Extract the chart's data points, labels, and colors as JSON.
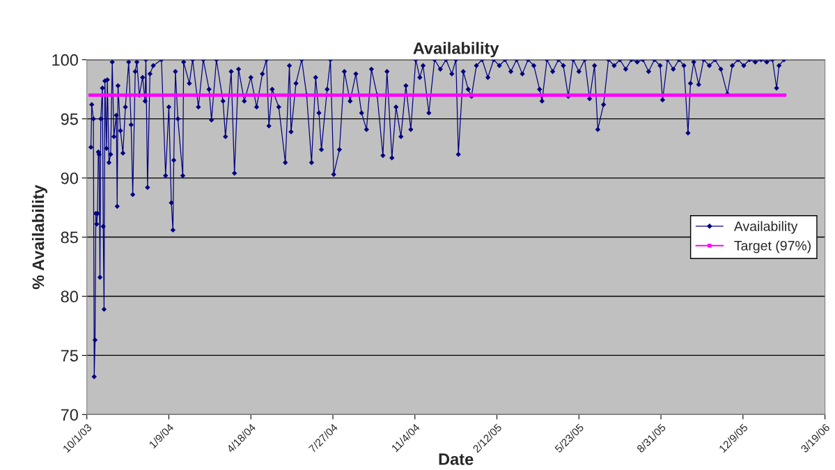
{
  "chart_data": {
    "type": "line",
    "title": "Availability",
    "xlabel": "Date",
    "ylabel": "% Availability",
    "xlim": [
      "2003-10-01",
      "2006-03-19"
    ],
    "xticks": [
      {
        "value": "2003-10-01",
        "label": "10/1/03"
      },
      {
        "value": "2004-01-09",
        "label": "1/9/04"
      },
      {
        "value": "2004-04-18",
        "label": "4/18/04"
      },
      {
        "value": "2004-07-27",
        "label": "7/27/04"
      },
      {
        "value": "2004-11-04",
        "label": "11/4/04"
      },
      {
        "value": "2005-02-12",
        "label": "2/12/05"
      },
      {
        "value": "2005-05-23",
        "label": "5/23/05"
      },
      {
        "value": "2005-08-31",
        "label": "8/31/05"
      },
      {
        "value": "2005-12-09",
        "label": "12/9/05"
      },
      {
        "value": "2006-03-19",
        "label": "3/19/06"
      }
    ],
    "ylim": [
      70,
      100
    ],
    "yticks": [
      70,
      75,
      80,
      85,
      90,
      95,
      100
    ],
    "grid": "y",
    "legend": "right",
    "series": [
      {
        "name": "Availability",
        "color": "#000080",
        "marker": "diamond",
        "x": [
          "2003-10-06",
          "2003-10-07",
          "2003-10-09",
          "2003-10-10",
          "2003-10-11",
          "2003-10-12",
          "2003-10-13",
          "2003-10-14",
          "2003-10-15",
          "2003-10-16",
          "2003-10-17",
          "2003-10-18",
          "2003-10-20",
          "2003-10-21",
          "2003-10-22",
          "2003-10-23",
          "2003-10-25",
          "2003-10-26",
          "2003-10-28",
          "2003-10-30",
          "2003-11-01",
          "2003-11-03",
          "2003-11-06",
          "2003-11-07",
          "2003-11-08",
          "2003-11-11",
          "2003-11-14",
          "2003-11-17",
          "2003-11-21",
          "2003-11-24",
          "2003-11-26",
          "2003-11-29",
          "2003-12-01",
          "2003-12-04",
          "2003-12-08",
          "2003-12-11",
          "2003-12-12",
          "2003-12-14",
          "2003-12-17",
          "2003-12-21",
          "2003-12-31",
          "2004-01-05",
          "2004-01-09",
          "2004-01-12",
          "2004-01-14",
          "2004-01-15",
          "2004-01-17",
          "2004-01-20",
          "2004-01-26",
          "2004-01-27",
          "2004-02-03",
          "2004-02-07",
          "2004-02-14",
          "2004-02-20",
          "2004-02-27",
          "2004-03-01",
          "2004-03-07",
          "2004-03-15",
          "2004-03-18",
          "2004-03-25",
          "2004-03-29",
          "2004-04-03",
          "2004-04-10",
          "2004-04-18",
          "2004-04-25",
          "2004-05-02",
          "2004-05-07",
          "2004-05-10",
          "2004-05-14",
          "2004-05-22",
          "2004-05-30",
          "2004-06-04",
          "2004-06-06",
          "2004-06-12",
          "2004-06-19",
          "2004-06-25",
          "2004-07-01",
          "2004-07-06",
          "2004-07-10",
          "2004-07-13",
          "2004-07-20",
          "2004-07-24",
          "2004-07-28",
          "2004-08-04",
          "2004-08-10",
          "2004-08-17",
          "2004-08-24",
          "2004-08-31",
          "2004-09-06",
          "2004-09-12",
          "2004-09-19",
          "2004-09-26",
          "2004-10-01",
          "2004-10-07",
          "2004-10-12",
          "2004-10-18",
          "2004-10-24",
          "2004-10-30",
          "2004-11-05",
          "2004-11-10",
          "2004-11-14",
          "2004-11-21",
          "2004-11-28",
          "2004-12-05",
          "2004-12-12",
          "2004-12-19",
          "2004-12-24",
          "2004-12-27",
          "2005-01-02",
          "2005-01-08",
          "2005-01-12",
          "2005-01-18",
          "2005-01-25",
          "2005-02-01",
          "2005-02-08",
          "2005-02-15",
          "2005-02-22",
          "2005-03-01",
          "2005-03-08",
          "2005-03-15",
          "2005-03-22",
          "2005-03-29",
          "2005-04-05",
          "2005-04-08",
          "2005-04-14",
          "2005-04-21",
          "2005-04-28",
          "2005-05-04",
          "2005-05-10",
          "2005-05-16",
          "2005-05-23",
          "2005-05-30",
          "2005-06-05",
          "2005-06-11",
          "2005-06-15",
          "2005-06-22",
          "2005-06-28",
          "2005-07-05",
          "2005-07-12",
          "2005-07-19",
          "2005-07-26",
          "2005-08-02",
          "2005-08-09",
          "2005-08-16",
          "2005-08-23",
          "2005-08-30",
          "2005-09-02",
          "2005-09-08",
          "2005-09-15",
          "2005-09-22",
          "2005-09-28",
          "2005-10-03",
          "2005-10-06",
          "2005-10-10",
          "2005-10-16",
          "2005-10-22",
          "2005-10-29",
          "2005-11-05",
          "2005-11-12",
          "2005-11-20",
          "2005-11-26",
          "2005-12-03",
          "2005-12-10",
          "2005-12-17",
          "2005-12-24",
          "2005-12-31",
          "2006-01-07",
          "2006-01-14",
          "2006-01-19",
          "2006-01-22",
          "2006-01-28"
        ],
        "values": [
          92.6,
          96.2,
          95.0,
          73.2,
          76.3,
          87.0,
          86.1,
          87.0,
          92.2,
          92.0,
          81.6,
          95.0,
          97.6,
          85.9,
          78.9,
          98.2,
          92.5,
          98.3,
          91.3,
          92.0,
          99.8,
          93.5,
          95.3,
          87.6,
          97.8,
          94.0,
          92.1,
          96.0,
          99.8,
          94.5,
          88.6,
          99.0,
          99.8,
          97.0,
          98.5,
          96.5,
          100.0,
          89.2,
          98.8,
          99.5,
          100.0,
          90.2,
          96.0,
          87.9,
          85.6,
          91.5,
          99.0,
          95.0,
          90.2,
          99.8,
          98.0,
          100.0,
          96.0,
          100.0,
          97.5,
          94.9,
          100.0,
          96.5,
          93.5,
          99.0,
          90.4,
          99.2,
          96.5,
          98.5,
          96.0,
          98.8,
          100.0,
          94.4,
          97.5,
          96.0,
          91.3,
          99.5,
          93.9,
          98.0,
          100.0,
          97.0,
          91.3,
          98.5,
          95.5,
          92.4,
          97.5,
          100.0,
          90.3,
          92.4,
          99.0,
          96.5,
          98.8,
          95.5,
          94.1,
          99.2,
          97.0,
          91.9,
          99.0,
          91.7,
          96.0,
          93.5,
          97.8,
          94.1,
          100.0,
          98.5,
          99.5,
          95.5,
          100.0,
          99.2,
          100.0,
          98.8,
          100.0,
          92.0,
          99.0,
          97.5,
          96.9,
          99.5,
          100.0,
          98.5,
          100.0,
          99.5,
          100.0,
          99.0,
          100.0,
          98.8,
          100.0,
          99.5,
          97.5,
          96.5,
          100.0,
          99.0,
          100.0,
          99.5,
          96.9,
          100.0,
          99.0,
          100.0,
          96.7,
          99.5,
          94.1,
          96.2,
          100.0,
          99.5,
          100.0,
          99.2,
          100.0,
          99.8,
          100.0,
          99.0,
          100.0,
          99.5,
          96.6,
          100.0,
          99.2,
          100.0,
          99.5,
          93.8,
          98.0,
          99.8,
          97.9,
          100.0,
          99.5,
          100.0,
          99.2,
          97.1,
          99.5,
          100.0,
          99.5,
          100.0,
          99.8,
          100.0,
          99.8,
          100.0,
          97.6,
          99.5,
          100.0
        ]
      },
      {
        "name": "Target (97%)",
        "color": "#ff00ff",
        "marker": "square",
        "x": [
          "2003-10-05",
          "2006-01-29"
        ],
        "values": [
          97,
          97
        ]
      }
    ]
  }
}
